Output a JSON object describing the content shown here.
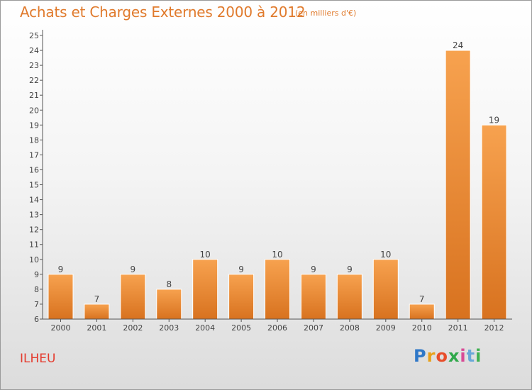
{
  "header": {
    "title": "Achats et Charges Externes 2000 à 2012",
    "subtitle": "(en milliers d'€)"
  },
  "footer": {
    "commune": "ILHEU",
    "logo_letters": [
      "P",
      "r",
      "o",
      "x",
      "i",
      "t",
      "i"
    ]
  },
  "chart_data": {
    "type": "bar",
    "title": "Achats et Charges Externes 2000 à 2012",
    "subtitle": "(en milliers d'€)",
    "categories": [
      "2000",
      "2001",
      "2002",
      "2003",
      "2004",
      "2005",
      "2006",
      "2007",
      "2008",
      "2009",
      "2010",
      "2011",
      "2012"
    ],
    "values": [
      9,
      7,
      9,
      8,
      10,
      9,
      10,
      9,
      9,
      10,
      7,
      24,
      19
    ],
    "ylim": [
      6,
      25
    ],
    "yticks": [
      6,
      7,
      8,
      9,
      10,
      11,
      12,
      13,
      14,
      15,
      16,
      17,
      18,
      19,
      20,
      21,
      22,
      23,
      24,
      25
    ],
    "xlabel": "",
    "ylabel": "",
    "grid": false,
    "bar_color": "#f0923a"
  }
}
